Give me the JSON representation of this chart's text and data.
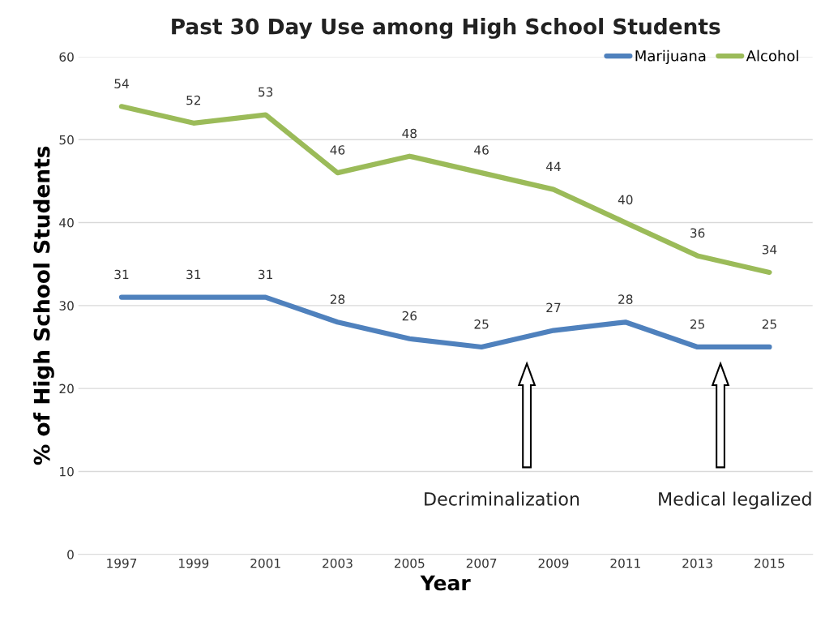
{
  "chart_data": {
    "type": "line",
    "title": "Past 30 Day Use among High School Students",
    "xlabel": "Year",
    "ylabel": "% of High School Students",
    "categories": [
      "1997",
      "1999",
      "2001",
      "2003",
      "2005",
      "2007",
      "2009",
      "2011",
      "2013",
      "2015"
    ],
    "series": [
      {
        "name": "Marijuana",
        "color": "#4f81bd",
        "values": [
          31,
          31,
          31,
          28,
          26,
          25,
          27,
          28,
          25,
          25
        ]
      },
      {
        "name": "Alcohol",
        "color": "#9bbb59",
        "values": [
          54,
          52,
          53,
          46,
          48,
          46,
          44,
          40,
          36,
          34
        ]
      }
    ],
    "ylim": [
      0,
      60
    ],
    "yticks": [
      0,
      10,
      20,
      30,
      40,
      50,
      60
    ],
    "grid": "y",
    "legend": "top right",
    "data_labels": true,
    "marker": "none",
    "line_style": "solid",
    "annotations": [
      "Decriminalization",
      "Medical legalized"
    ]
  }
}
